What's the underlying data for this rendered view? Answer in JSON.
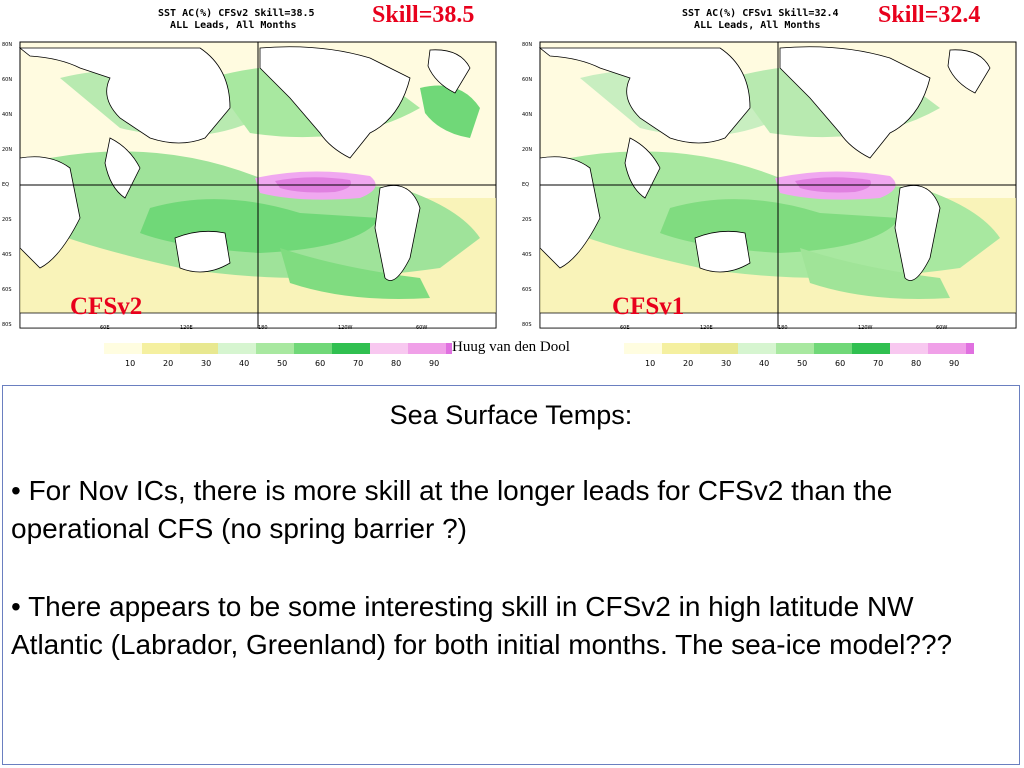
{
  "left_panel": {
    "map_title_line1": "SST AC(%) CFSv2 Skill=38.5",
    "map_title_line2": "ALL Leads, All Months",
    "skill_label": "Skill=38.5",
    "model_label": "CFSv2",
    "lat_ticks": [
      "80N",
      "60N",
      "40N",
      "20N",
      "EQ",
      "20S",
      "40S",
      "60S",
      "80S"
    ],
    "lon_ticks": [
      "60E",
      "120E",
      "180",
      "120W",
      "60W"
    ]
  },
  "right_panel": {
    "map_title_line1": "SST AC(%) CFSv1 Skill=32.4",
    "map_title_line2": "ALL Leads, All Months",
    "skill_label": "Skill=32.4",
    "model_label": "CFSv1",
    "lat_ticks": [
      "80N",
      "60N",
      "40N",
      "20N",
      "EQ",
      "20S",
      "40S",
      "60S",
      "80S"
    ],
    "lon_ticks": [
      "60E",
      "120E",
      "180",
      "120W",
      "60W"
    ]
  },
  "colorbar": {
    "ticks": [
      "10",
      "20",
      "30",
      "40",
      "50",
      "60",
      "70",
      "80",
      "90"
    ],
    "colors": [
      "#fffde0",
      "#f5f0a0",
      "#e8e890",
      "#d6f5d0",
      "#a8e8a0",
      "#70d878",
      "#30c050",
      "#f8c8f0",
      "#f0a0e8",
      "#e070e0"
    ]
  },
  "credit": "Huug van den Dool",
  "text": {
    "title": "Sea Surface Temps:",
    "bullet1": "• For Nov ICs, there is more skill at the longer leads for CFSv2 than the operational CFS (no spring barrier ?)",
    "bullet2": "• There appears to be some interesting skill in CFSv2 in high latitude NW Atlantic (Labrador, Greenland) for both initial months. The sea-ice model???"
  }
}
